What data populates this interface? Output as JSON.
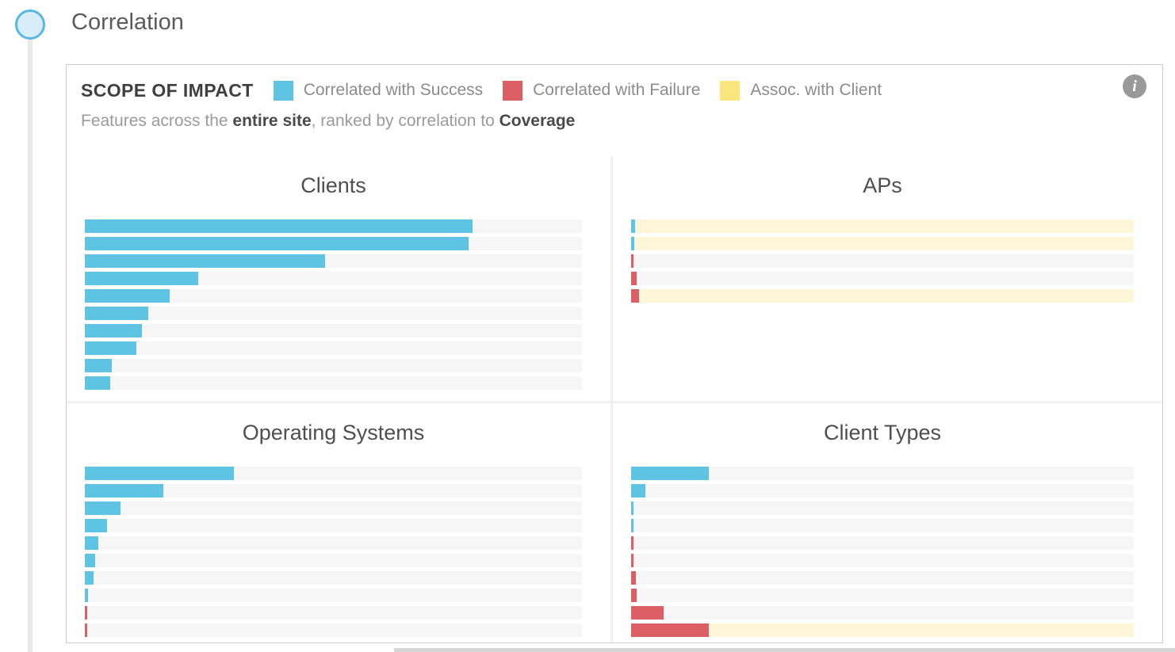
{
  "section": {
    "title": "Correlation"
  },
  "panel": {
    "title": "SCOPE OF IMPACT",
    "legend": [
      {
        "label": "Correlated with Success",
        "color_key": "success"
      },
      {
        "label": "Correlated with Failure",
        "color_key": "failure"
      },
      {
        "label": "Assoc. with Client",
        "color_key": "client"
      }
    ],
    "info_icon_glyph": "i",
    "subtitle": {
      "prefix": "Features across the ",
      "scope": "entire site",
      "middle": ", ranked by correlation to ",
      "metric": "Coverage"
    }
  },
  "colors": {
    "success": "#5fc4e3",
    "failure": "#dd5f66",
    "client": "#f9e67d",
    "client_track": "#fdf6d8",
    "default_track": "#f6f6f6"
  },
  "chart_data": [
    {
      "type": "bar",
      "orientation": "horizontal",
      "title": "Clients",
      "xlabel": "",
      "ylabel": "",
      "xlim_percent": [
        0,
        100
      ],
      "grid": false,
      "legend_position": "panel-header",
      "rows": [
        {
          "value_pct": 78.0,
          "bar": "success",
          "track": "default"
        },
        {
          "value_pct": 77.2,
          "bar": "success",
          "track": "default"
        },
        {
          "value_pct": 48.4,
          "bar": "success",
          "track": "default"
        },
        {
          "value_pct": 22.8,
          "bar": "success",
          "track": "default"
        },
        {
          "value_pct": 17.0,
          "bar": "success",
          "track": "default"
        },
        {
          "value_pct": 12.8,
          "bar": "success",
          "track": "default"
        },
        {
          "value_pct": 11.5,
          "bar": "success",
          "track": "default"
        },
        {
          "value_pct": 10.3,
          "bar": "success",
          "track": "default"
        },
        {
          "value_pct": 5.4,
          "bar": "success",
          "track": "default"
        },
        {
          "value_pct": 5.1,
          "bar": "success",
          "track": "default"
        }
      ]
    },
    {
      "type": "bar",
      "orientation": "horizontal",
      "title": "APs",
      "xlabel": "",
      "ylabel": "",
      "xlim_percent": [
        0,
        100
      ],
      "grid": false,
      "legend_position": "panel-header",
      "rows": [
        {
          "value_pct": 0.8,
          "bar": "success",
          "track": "client"
        },
        {
          "value_pct": 0.7,
          "bar": "success",
          "track": "client"
        },
        {
          "value_pct": 0.5,
          "bar": "failure",
          "track": "default"
        },
        {
          "value_pct": 1.1,
          "bar": "failure",
          "track": "default"
        },
        {
          "value_pct": 1.5,
          "bar": "failure",
          "track": "client"
        }
      ]
    },
    {
      "type": "bar",
      "orientation": "horizontal",
      "title": "Operating Systems",
      "xlabel": "",
      "ylabel": "",
      "xlim_percent": [
        0,
        100
      ],
      "grid": false,
      "legend_position": "panel-header",
      "rows": [
        {
          "value_pct": 30.0,
          "bar": "success",
          "track": "default"
        },
        {
          "value_pct": 15.8,
          "bar": "success",
          "track": "default"
        },
        {
          "value_pct": 7.1,
          "bar": "success",
          "track": "default"
        },
        {
          "value_pct": 4.5,
          "bar": "success",
          "track": "default"
        },
        {
          "value_pct": 2.7,
          "bar": "success",
          "track": "default"
        },
        {
          "value_pct": 2.0,
          "bar": "success",
          "track": "default"
        },
        {
          "value_pct": 1.7,
          "bar": "success",
          "track": "default"
        },
        {
          "value_pct": 0.7,
          "bar": "success",
          "track": "default"
        },
        {
          "value_pct": 0.4,
          "bar": "failure",
          "track": "default"
        },
        {
          "value_pct": 0.4,
          "bar": "failure",
          "track": "default"
        }
      ]
    },
    {
      "type": "bar",
      "orientation": "horizontal",
      "title": "Client Types",
      "xlabel": "",
      "ylabel": "",
      "xlim_percent": [
        0,
        100
      ],
      "grid": false,
      "legend_position": "panel-header",
      "rows": [
        {
          "value_pct": 15.5,
          "bar": "success",
          "track": "default"
        },
        {
          "value_pct": 2.8,
          "bar": "success",
          "track": "default"
        },
        {
          "value_pct": 0.4,
          "bar": "success",
          "track": "default"
        },
        {
          "value_pct": 0.5,
          "bar": "success",
          "track": "default"
        },
        {
          "value_pct": 0.4,
          "bar": "failure",
          "track": "default"
        },
        {
          "value_pct": 0.4,
          "bar": "failure",
          "track": "default"
        },
        {
          "value_pct": 1.0,
          "bar": "failure",
          "track": "default"
        },
        {
          "value_pct": 1.1,
          "bar": "failure",
          "track": "default"
        },
        {
          "value_pct": 6.5,
          "bar": "failure",
          "track": "default"
        },
        {
          "value_pct": 15.5,
          "bar": "failure",
          "track": "client"
        }
      ]
    }
  ]
}
